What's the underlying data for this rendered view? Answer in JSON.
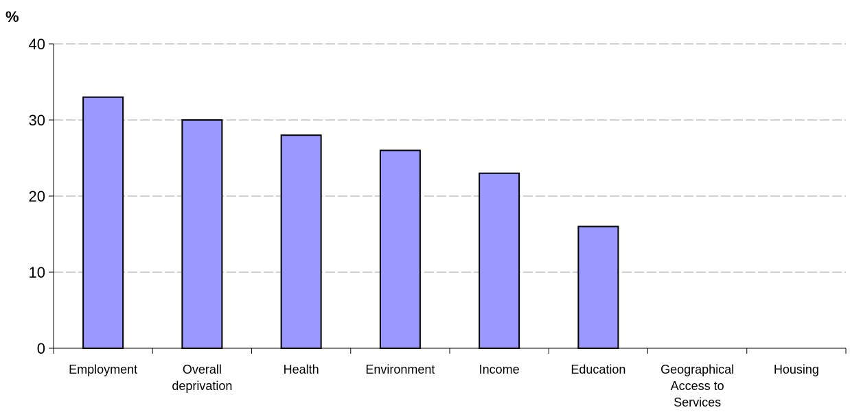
{
  "chart_data": {
    "type": "bar",
    "unit_label": "%",
    "categories": [
      [
        "Employment"
      ],
      [
        "Overall",
        "deprivation"
      ],
      [
        "Health"
      ],
      [
        "Environment"
      ],
      [
        "Income"
      ],
      [
        "Education"
      ],
      [
        "Geographical",
        "Access to",
        "Services"
      ],
      [
        "Housing"
      ]
    ],
    "values": [
      33,
      30,
      28,
      26,
      23,
      16,
      0,
      0
    ],
    "ylim": [
      0,
      40
    ],
    "yticks": [
      0,
      10,
      20,
      30,
      40
    ],
    "grid": true,
    "legend": "none",
    "colors": {
      "bar_fill": "#9999ff",
      "bar_stroke": "#000000",
      "grid": "#a6a6a6",
      "axis": "#000000"
    }
  }
}
